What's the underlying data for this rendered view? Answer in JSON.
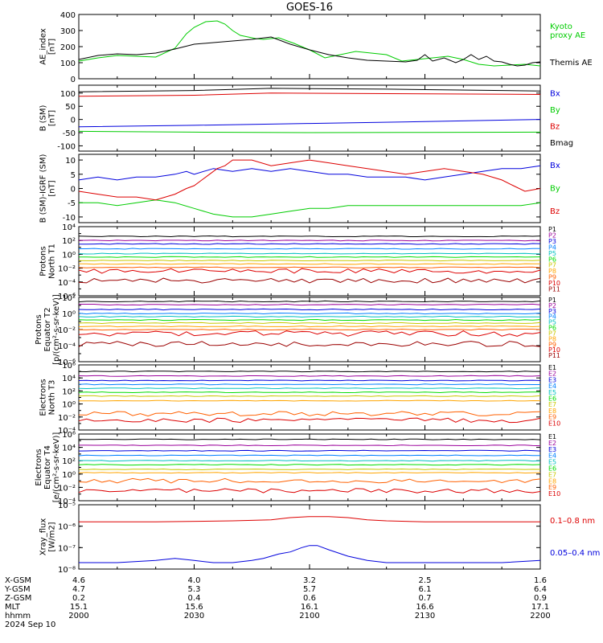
{
  "title": "GOES-16",
  "colors": {
    "black": "#000000",
    "red": "#dd0000",
    "green": "#00cc00",
    "blue": "#0000dd",
    "p": [
      "#000000",
      "#9b009b",
      "#0000dd",
      "#0080ff",
      "#00c0c0",
      "#00dd00",
      "#c8c800",
      "#ffa500",
      "#ff6000",
      "#dd0000",
      "#9b0000"
    ],
    "e": [
      "#000000",
      "#9b009b",
      "#0000dd",
      "#0080ff",
      "#00c0c0",
      "#00dd00",
      "#c8c800",
      "#ffa500",
      "#ff6000",
      "#dd0000",
      "#9b0000"
    ]
  },
  "x_axis": {
    "rows": [
      {
        "label": "X-GSM",
        "values": [
          "4.6",
          "4.0",
          "3.2",
          "2.5",
          "1.6"
        ]
      },
      {
        "label": "Y-GSM",
        "values": [
          "4.7",
          "5.3",
          "5.7",
          "6.1",
          "6.4"
        ]
      },
      {
        "label": "Z-GSM",
        "values": [
          "0.2",
          "0.4",
          "0.6",
          "0.7",
          "0.9"
        ]
      },
      {
        "label": "MLT",
        "values": [
          "15.1",
          "15.6",
          "16.1",
          "16.6",
          "17.1"
        ]
      },
      {
        "label": "hhmm",
        "values": [
          "2000",
          "2030",
          "2100",
          "2130",
          "2200"
        ]
      }
    ],
    "date": "2024 Sep 10",
    "range": [
      0,
      120
    ]
  },
  "chart_data": [
    {
      "type": "line",
      "ylabel": "AE_index\n[nT]",
      "ylim": [
        0,
        400
      ],
      "yscale": "linear",
      "yticks": [
        "0",
        "100",
        "200",
        "300",
        "400"
      ],
      "ytick_values": [
        0,
        100,
        200,
        300,
        400
      ],
      "legend": [
        {
          "text": "Kyoto\nproxy AE",
          "color": "#00cc00"
        },
        {
          "text": "Themis AE",
          "color": "#000000"
        }
      ],
      "series": [
        {
          "name": "Kyoto proxy AE",
          "color": "#00cc00",
          "x": [
            0,
            5,
            10,
            15,
            20,
            25,
            28,
            30,
            33,
            36,
            38,
            40,
            42,
            44,
            46,
            48,
            52,
            56,
            60,
            64,
            68,
            72,
            76,
            80,
            84,
            88,
            92,
            96,
            100,
            104,
            108,
            112,
            116,
            120
          ],
          "y": [
            110,
            130,
            145,
            140,
            135,
            190,
            280,
            320,
            355,
            360,
            340,
            300,
            270,
            260,
            250,
            245,
            255,
            220,
            180,
            130,
            150,
            170,
            160,
            150,
            110,
            120,
            130,
            140,
            120,
            90,
            80,
            85,
            90,
            80
          ]
        },
        {
          "name": "Themis AE",
          "color": "#000000",
          "x": [
            0,
            5,
            10,
            15,
            20,
            25,
            30,
            35,
            40,
            45,
            50,
            55,
            60,
            65,
            70,
            75,
            80,
            85,
            88,
            90,
            92,
            95,
            98,
            100,
            102,
            104,
            106,
            108,
            110,
            112,
            114,
            116,
            118,
            120
          ],
          "y": [
            120,
            145,
            155,
            150,
            160,
            185,
            215,
            225,
            235,
            245,
            260,
            215,
            180,
            150,
            130,
            115,
            110,
            105,
            115,
            150,
            110,
            130,
            100,
            120,
            150,
            120,
            140,
            110,
            105,
            90,
            80,
            85,
            100,
            105
          ]
        }
      ]
    },
    {
      "type": "line",
      "ylabel": "B (SM)\n[nT]",
      "ylim": [
        -120,
        130
      ],
      "yscale": "linear",
      "yticks": [
        "-100",
        "-50",
        "0",
        "50",
        "100"
      ],
      "ytick_values": [
        -100,
        -50,
        0,
        50,
        100
      ],
      "legend": [
        {
          "text": "Bx",
          "color": "#0000dd"
        },
        {
          "text": "By",
          "color": "#00cc00"
        },
        {
          "text": "Bz",
          "color": "#dd0000"
        },
        {
          "text": "Bmag",
          "color": "#000000"
        }
      ],
      "series": [
        {
          "name": "Bmag",
          "color": "#000000",
          "x": [
            0,
            30,
            50,
            80,
            120
          ],
          "y": [
            105,
            110,
            118,
            115,
            108
          ]
        },
        {
          "name": "Bz",
          "color": "#dd0000",
          "x": [
            0,
            30,
            50,
            80,
            120
          ],
          "y": [
            88,
            92,
            100,
            98,
            95
          ]
        },
        {
          "name": "Bx",
          "color": "#0000dd",
          "x": [
            0,
            30,
            60,
            90,
            120
          ],
          "y": [
            -28,
            -22,
            -15,
            -8,
            0
          ]
        },
        {
          "name": "By",
          "color": "#00cc00",
          "x": [
            0,
            30,
            60,
            90,
            120
          ],
          "y": [
            -45,
            -48,
            -50,
            -49,
            -48
          ]
        }
      ]
    },
    {
      "type": "line",
      "ylabel": "B (SM)-IGRF (SM)\n[nT]",
      "ylim": [
        -12,
        12
      ],
      "yscale": "linear",
      "yticks": [
        "-10",
        "-5",
        "0",
        "5",
        "10"
      ],
      "ytick_values": [
        -10,
        -5,
        0,
        5,
        10
      ],
      "legend": [
        {
          "text": "Bx",
          "color": "#0000dd"
        },
        {
          "text": "By",
          "color": "#00cc00"
        },
        {
          "text": "Bz",
          "color": "#dd0000"
        }
      ],
      "series": [
        {
          "name": "Bx",
          "color": "#0000dd",
          "x": [
            0,
            5,
            10,
            15,
            20,
            25,
            28,
            30,
            35,
            40,
            45,
            50,
            55,
            60,
            65,
            70,
            75,
            80,
            85,
            90,
            95,
            100,
            105,
            110,
            115,
            120
          ],
          "y": [
            3,
            4,
            3,
            4,
            4,
            5,
            6,
            5,
            7,
            6,
            7,
            6,
            7,
            6,
            5,
            5,
            4,
            4,
            4,
            3,
            4,
            5,
            6,
            7,
            7,
            8
          ]
        },
        {
          "name": "By",
          "color": "#00cc00",
          "x": [
            0,
            5,
            10,
            15,
            20,
            25,
            30,
            35,
            40,
            45,
            50,
            55,
            60,
            65,
            70,
            75,
            80,
            85,
            90,
            95,
            100,
            105,
            110,
            115,
            120
          ],
          "y": [
            -5,
            -5,
            -6,
            -5,
            -4,
            -5,
            -7,
            -9,
            -10,
            -10,
            -9,
            -8,
            -7,
            -7,
            -6,
            -6,
            -6,
            -6,
            -6,
            -6,
            -6,
            -6,
            -6,
            -6,
            -5
          ]
        },
        {
          "name": "Bz",
          "color": "#dd0000",
          "x": [
            0,
            5,
            10,
            15,
            20,
            25,
            28,
            30,
            32,
            34,
            36,
            38,
            40,
            45,
            50,
            55,
            60,
            65,
            70,
            75,
            80,
            85,
            90,
            95,
            100,
            105,
            110,
            113,
            116,
            120
          ],
          "y": [
            -1,
            -2,
            -3,
            -3,
            -4,
            -2,
            0,
            1,
            3,
            5,
            7,
            8,
            10,
            10,
            8,
            9,
            10,
            9,
            8,
            7,
            6,
            5,
            6,
            7,
            6,
            5,
            3,
            1,
            -1,
            0
          ]
        }
      ]
    },
    {
      "type": "line",
      "ylabel": "Protons\nNorth T1",
      "ylim": [
        -6,
        4
      ],
      "yscale": "log",
      "yticks": [
        "10⁻⁶",
        "10⁻⁴",
        "10⁻²",
        "10⁰",
        "10²",
        "10⁴"
      ],
      "ytick_values": [
        -6,
        -4,
        -2,
        0,
        2,
        4
      ],
      "legend": [
        "P1",
        "P2",
        "P3",
        "P4",
        "P5",
        "P6",
        "P7",
        "P8",
        "P9",
        "P10",
        "P11"
      ],
      "series_levels": [
        2.6,
        2.0,
        1.5,
        0.8,
        0.1,
        -0.4,
        -0.9,
        -1.4,
        -1.9,
        -2.4,
        -3.8
      ]
    },
    {
      "type": "line",
      "ylabel": "Protons\nEquator T2\n[p/(cm²-s-sr-keV)]",
      "ylim": [
        -6,
        2
      ],
      "yscale": "log",
      "yticks": [
        "10⁻⁶",
        "10⁻⁴",
        "10⁻²",
        "10⁰",
        "10²"
      ],
      "ytick_values": [
        -6,
        -4,
        -2,
        0,
        2
      ],
      "legend": [
        "P1",
        "P2",
        "P3",
        "P4",
        "P5",
        "P6",
        "P7",
        "P8",
        "P9",
        "P10",
        "P11"
      ],
      "series_levels": [
        1.5,
        1.1,
        0.5,
        0.0,
        -0.4,
        -0.8,
        -1.2,
        -1.6,
        -2.0,
        -2.5,
        -3.8
      ]
    },
    {
      "type": "line",
      "ylabel": "Electrons\nNorth T3",
      "ylim": [
        -4,
        6
      ],
      "yscale": "log",
      "yticks": [
        "10⁻⁴",
        "10⁻²",
        "10⁰",
        "10²",
        "10⁴",
        "10⁶"
      ],
      "ytick_values": [
        -4,
        -2,
        0,
        2,
        4,
        6
      ],
      "legend": [
        "E1",
        "E2",
        "E3",
        "E4",
        "E5",
        "E6",
        "E7",
        "E8",
        "E9",
        "E10"
      ],
      "series_levels": [
        5.0,
        4.3,
        3.6,
        3.0,
        2.4,
        1.8,
        1.2,
        0.5,
        -1.5,
        -2.5
      ]
    },
    {
      "type": "line",
      "ylabel": "Electrons\nEquator T4\n[e/(cm²-s-sr-keV)]",
      "ylim": [
        -4,
        6
      ],
      "yscale": "log",
      "yticks": [
        "10⁻⁴",
        "10⁻²",
        "10⁰",
        "10²",
        "10⁴",
        "10⁶"
      ],
      "ytick_values": [
        -4,
        -2,
        0,
        2,
        4,
        6
      ],
      "legend": [
        "E1",
        "E2",
        "E3",
        "E4",
        "E5",
        "E6",
        "E7",
        "E8",
        "E9",
        "E10"
      ],
      "series_levels": [
        5.2,
        4.3,
        3.5,
        2.8,
        2.0,
        1.4,
        0.7,
        0.2,
        -1.0,
        -2.5
      ]
    },
    {
      "type": "line",
      "ylabel": "Xray_flux\n[W/m2]",
      "ylim": [
        -8,
        -5
      ],
      "yscale": "log",
      "yticks": [
        "10⁻⁸",
        "10⁻⁷",
        "10⁻⁶",
        "10⁻⁵"
      ],
      "ytick_values": [
        -8,
        -7,
        -6,
        -5
      ],
      "legend": [
        {
          "text": "0.1–0.8 nm",
          "color": "#dd0000"
        },
        {
          "text": "0.05–0.4 nm",
          "color": "#0000dd"
        }
      ],
      "series": [
        {
          "name": "0.1–0.8 nm",
          "color": "#dd0000",
          "x": [
            0,
            20,
            40,
            50,
            55,
            60,
            65,
            70,
            75,
            80,
            90,
            100,
            110,
            120
          ],
          "y": [
            -5.8,
            -5.8,
            -5.75,
            -5.7,
            -5.6,
            -5.55,
            -5.55,
            -5.6,
            -5.7,
            -5.75,
            -5.8,
            -5.8,
            -5.8,
            -5.8
          ]
        },
        {
          "name": "0.05–0.4 nm",
          "color": "#0000dd",
          "x": [
            0,
            10,
            20,
            25,
            30,
            35,
            40,
            45,
            48,
            50,
            52,
            55,
            58,
            60,
            62,
            65,
            70,
            75,
            80,
            85,
            90,
            100,
            110,
            120
          ],
          "y": [
            -7.7,
            -7.7,
            -7.6,
            -7.5,
            -7.6,
            -7.7,
            -7.7,
            -7.6,
            -7.5,
            -7.4,
            -7.3,
            -7.2,
            -7.0,
            -6.9,
            -6.9,
            -7.1,
            -7.4,
            -7.6,
            -7.7,
            -7.7,
            -7.7,
            -7.7,
            -7.7,
            -7.6
          ]
        }
      ]
    }
  ]
}
